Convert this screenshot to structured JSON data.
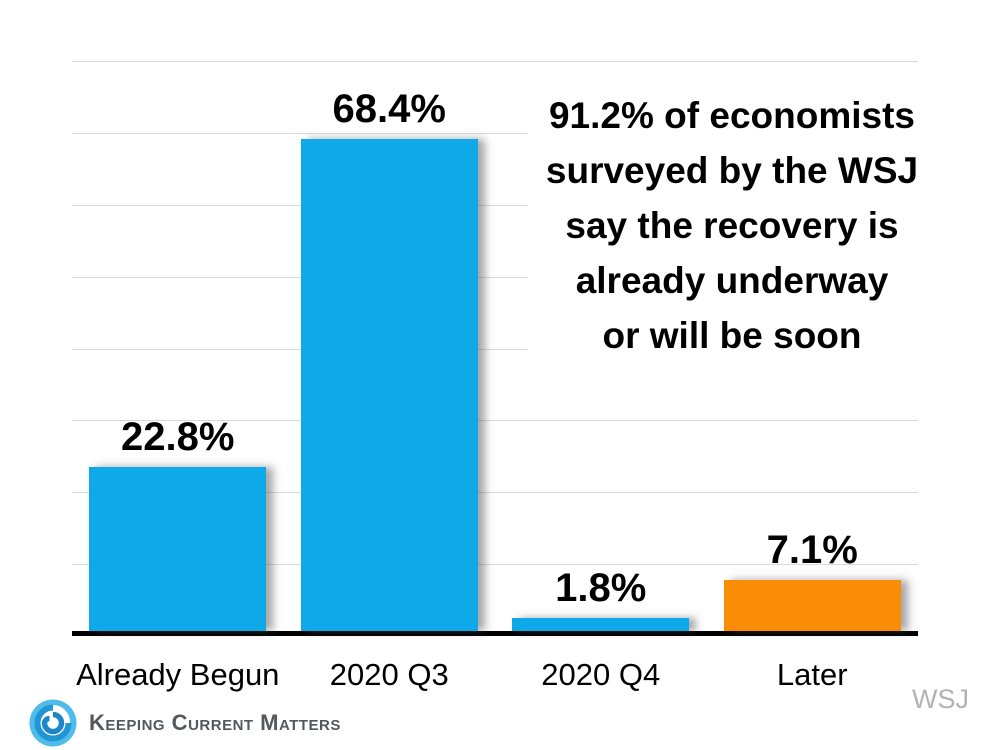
{
  "chart_data": {
    "type": "bar",
    "categories": [
      "Already Begun",
      "2020 Q3",
      "2020 Q4",
      "Later"
    ],
    "values": [
      22.8,
      68.4,
      1.8,
      7.1
    ],
    "value_labels": [
      "22.8%",
      "68.4%",
      "1.8%",
      "7.1%"
    ],
    "bar_colors": [
      "#0FA8E8",
      "#0FA8E8",
      "#0FA8E8",
      "#FB8C06"
    ],
    "title": "",
    "xlabel": "",
    "ylabel": "",
    "ylim": [
      0,
      80
    ],
    "gridline_interval": 10,
    "grid": true,
    "legend": "none"
  },
  "annotation": {
    "lines": [
      "91.2% of economists",
      "surveyed by the WSJ",
      "say the recovery is",
      "already underway",
      "or will be soon"
    ]
  },
  "source": {
    "label": "WSJ"
  },
  "branding": {
    "label": "Keeping Current Matters"
  },
  "colors": {
    "bar_blue": "#0FA8E8",
    "bar_orange": "#FB8C06",
    "gridline": "#D9D9D9",
    "axis": "#000000",
    "source_gray": "#B3B3B3",
    "brand_text": "#54575B",
    "brand_icon_light": "#4FBCEA",
    "brand_icon_dark": "#1E86C8"
  }
}
